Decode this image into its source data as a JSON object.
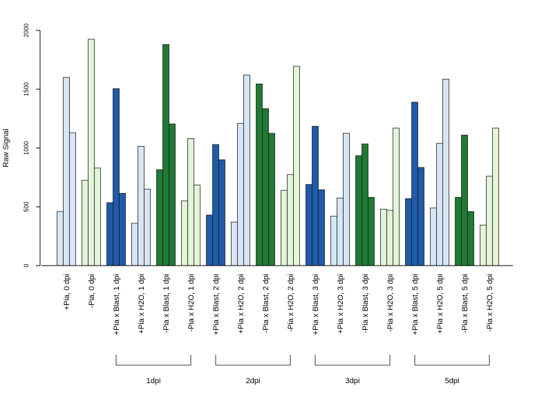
{
  "chart_data": {
    "type": "bar",
    "ylabel": "Raw Signal",
    "ylim": [
      0,
      2000
    ],
    "yticks": [
      0,
      500,
      1000,
      1500,
      2000
    ],
    "categories": [
      "+Pia, 0 dpi",
      "-Pia, 0 dpi",
      "+Pia x Blast, 1 dpi",
      "+Pia x H2O, 1 dpi",
      "-Pia x Blast, 1 dpi",
      "-Pia x H2O, 1 dpi",
      "+Pia x Blast, 2 dpi",
      "+Pia x H2O, 2 dpi",
      "-Pia x Blast, 2 dpi",
      "-Pia x H2O, 2 dpi",
      "+Pia x Blast, 3 dpi",
      "+Pia x H2O, 3 dpi",
      "-Pia x Blast, 3 dpi",
      "-Pia x H2O, 3 dpi",
      "+Pia x Blast, 5 dpi",
      "+Pia x H2O, 5 dpi",
      "-Pia x Blast, 5 dpi",
      "-Pia x H2O, 5 dpi"
    ],
    "category_colors": [
      "#d6e6f5",
      "#e3f5d8",
      "#1f5ba8",
      "#d6e6f5",
      "#207a35",
      "#e3f5d8",
      "#1f5ba8",
      "#d6e6f5",
      "#207a35",
      "#e3f5d8",
      "#1f5ba8",
      "#d6e6f5",
      "#207a35",
      "#e3f5d8",
      "#1f5ba8",
      "#d6e6f5",
      "#207a35",
      "#e3f5d8"
    ],
    "replicate_values": [
      [
        460,
        1600,
        1130
      ],
      [
        725,
        1925,
        830
      ],
      [
        535,
        1505,
        615
      ],
      [
        360,
        1015,
        650
      ],
      [
        815,
        1880,
        1205
      ],
      [
        550,
        1080,
        685
      ],
      [
        430,
        1030,
        900
      ],
      [
        370,
        1210,
        1620
      ],
      [
        1545,
        1335,
        1125
      ],
      [
        640,
        775,
        1695
      ],
      [
        690,
        1185,
        645
      ],
      [
        420,
        575,
        1125
      ],
      [
        935,
        1035,
        580
      ],
      [
        480,
        470,
        1170
      ],
      [
        570,
        1390,
        835
      ],
      [
        490,
        1040,
        1585
      ],
      [
        580,
        1110,
        460
      ],
      [
        345,
        760,
        1170
      ]
    ],
    "groups": [
      {
        "label": "1dpi",
        "first_category": 2,
        "last_category": 5
      },
      {
        "label": "2dpi",
        "first_category": 6,
        "last_category": 9
      },
      {
        "label": "3dpi",
        "first_category": 10,
        "last_category": 13
      },
      {
        "label": "5dpi",
        "first_category": 14,
        "last_category": 17
      }
    ]
  }
}
